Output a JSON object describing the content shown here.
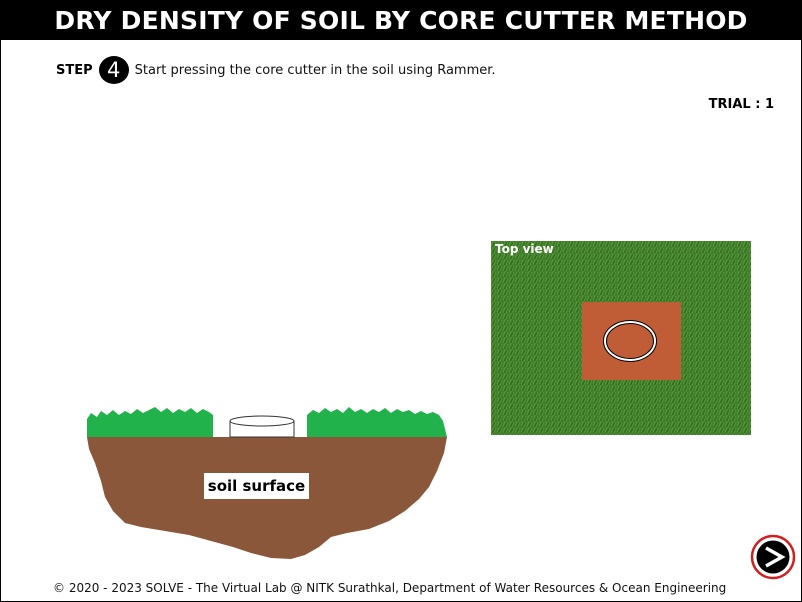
{
  "header": {
    "title": "DRY DENSITY OF SOIL BY CORE CUTTER METHOD"
  },
  "step": {
    "label": "STEP",
    "number": "4",
    "instruction": "Start pressing the core cutter in the soil using Rammer."
  },
  "trial": {
    "text": "TRIAL : 1"
  },
  "scene": {
    "soil_label": "soil surface",
    "top_view_label": "Top view",
    "colors": {
      "grass": "#22b24c",
      "soil": "#8b573a",
      "dug_soil": "#c6623c"
    }
  },
  "footer": {
    "text": "© 2020 - 2023 SOLVE - The Virtual Lab @ NITK Surathkal, Department of Water Resources & Ocean Engineering"
  },
  "nav": {
    "next_icon": "next-arrow-icon",
    "accent": "#d22020"
  }
}
